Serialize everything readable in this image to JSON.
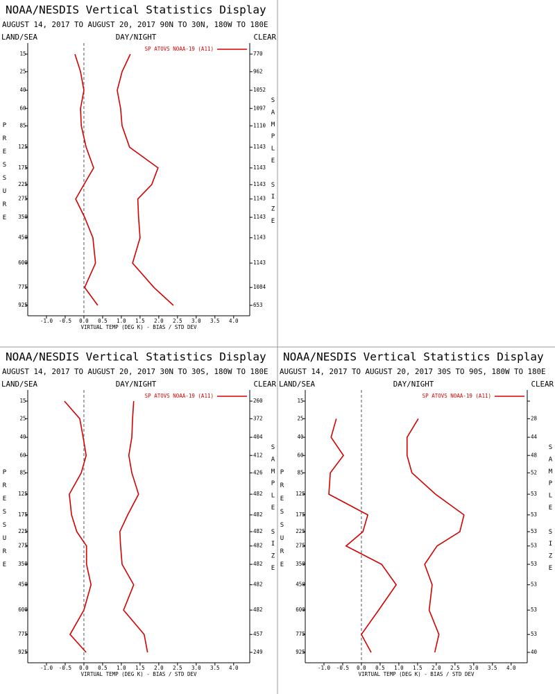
{
  "chart_data": [
    {
      "type": "line",
      "title": "NOAA/NESDIS Vertical Statistics Display",
      "subtitle": "AUGUST 14, 2017 TO AUGUST 20, 2017 90N TO 30N, 180W TO 180E",
      "left_label": "LAND/SEA",
      "center_label": "DAY/NIGHT",
      "right_label": "CLEAR",
      "y_label": "PRESSURE",
      "y2_label": "SAMPLE SIZE",
      "x_label": "VIRTUAL TEMP (DEG K) - BIAS / STD DEV",
      "levels": [
        15,
        25,
        40,
        60,
        85,
        125,
        175,
        225,
        275,
        350,
        450,
        600,
        775,
        925
      ],
      "ylim": [
        15,
        925
      ],
      "y_power": 0.286,
      "xlim": [
        -1.5,
        4.43
      ],
      "xticks": [
        {
          "value": -1,
          "label": "-1.0"
        },
        {
          "value": -0.5,
          "label": "-0.5"
        },
        {
          "value": 0,
          "label": "0.0"
        },
        {
          "value": 0.5,
          "label": "0.5"
        },
        {
          "value": 1,
          "label": "1.0"
        },
        {
          "value": 1.5,
          "label": "1.5"
        },
        {
          "value": 2,
          "label": "2.0"
        },
        {
          "value": 2.5,
          "label": "2.5"
        },
        {
          "value": 3,
          "label": "3.0"
        },
        {
          "value": 3.5,
          "label": "3.5"
        },
        {
          "value": 4,
          "label": "4.0"
        }
      ],
      "sample_size": [
        770,
        962,
        1052,
        1097,
        1110,
        1143,
        1143,
        1143,
        1143,
        1143,
        1143,
        1143,
        1084,
        653
      ],
      "series": [
        {
          "name": "SP ATOVS NOAA-19 (A11)",
          "color": "#d40000",
          "bias": [
            -0.24,
            -0.09,
            0.0,
            -0.09,
            -0.07,
            0.06,
            0.26,
            0.0,
            -0.22,
            0.02,
            0.24,
            0.31,
            0.02,
            0.37
          ],
          "std_dev": [
            1.24,
            1.02,
            0.89,
            0.98,
            1.02,
            1.22,
            1.98,
            1.81,
            1.44,
            1.46,
            1.5,
            1.3,
            1.87,
            2.39
          ]
        }
      ]
    },
    {
      "type": "line",
      "title": "NOAA/NESDIS Vertical Statistics Display",
      "subtitle": "AUGUST 14, 2017 TO AUGUST 20, 2017 30N TO 30S, 180W TO 180E",
      "left_label": "LAND/SEA",
      "center_label": "DAY/NIGHT",
      "right_label": "CLEAR",
      "y_label": "PRESSURE",
      "y2_label": "SAMPLE SIZE",
      "x_label": "VIRTUAL TEMP (DEG K) - BIAS / STD DEV",
      "levels": [
        15,
        25,
        40,
        60,
        85,
        125,
        175,
        225,
        275,
        350,
        450,
        600,
        775,
        925
      ],
      "ylim": [
        15,
        925
      ],
      "y_power": 0.286,
      "xlim": [
        -1.5,
        4.43
      ],
      "xticks": [
        {
          "value": -1,
          "label": "-1.0"
        },
        {
          "value": -0.5,
          "label": "-0.5"
        },
        {
          "value": 0,
          "label": "0.0"
        },
        {
          "value": 0.5,
          "label": "0.5"
        },
        {
          "value": 1,
          "label": "1.0"
        },
        {
          "value": 1.5,
          "label": "1.5"
        },
        {
          "value": 2,
          "label": "2.0"
        },
        {
          "value": 2.5,
          "label": "2.5"
        },
        {
          "value": 3,
          "label": "3.0"
        },
        {
          "value": 3.5,
          "label": "3.5"
        },
        {
          "value": 4,
          "label": "4.0"
        }
      ],
      "sample_size": [
        260,
        372,
        404,
        412,
        426,
        482,
        482,
        482,
        482,
        482,
        482,
        482,
        457,
        249
      ],
      "series": [
        {
          "name": "SP ATOVS NOAA-19 (A11)",
          "color": "#d40000",
          "bias": [
            -0.52,
            -0.11,
            -0.02,
            0.06,
            -0.07,
            -0.39,
            -0.33,
            -0.19,
            0.07,
            0.07,
            0.19,
            0.0,
            -0.37,
            0.06
          ],
          "std_dev": [
            1.33,
            1.3,
            1.28,
            1.2,
            1.28,
            1.46,
            1.17,
            0.96,
            0.98,
            1.02,
            1.33,
            1.06,
            1.61,
            1.7
          ]
        }
      ]
    },
    {
      "type": "line",
      "title": "NOAA/NESDIS Vertical Statistics Display",
      "subtitle": "AUGUST 14, 2017 TO AUGUST 20, 2017 30S TO 90S, 180W TO 180E",
      "left_label": "LAND/SEA",
      "center_label": "DAY/NIGHT",
      "right_label": "CLEAR",
      "y_label": "PRESSURE",
      "y2_label": "SAMPLE SIZE",
      "x_label": "VIRTUAL TEMP (DEG K) - BIAS / STD DEV",
      "levels": [
        15,
        25,
        40,
        60,
        85,
        125,
        175,
        225,
        275,
        350,
        450,
        600,
        775,
        925
      ],
      "ylim": [
        15,
        925
      ],
      "y_power": 0.286,
      "xlim": [
        -1.5,
        4.43
      ],
      "xticks": [
        {
          "value": -1,
          "label": "-1.0"
        },
        {
          "value": -0.5,
          "label": "-0.5"
        },
        {
          "value": 0,
          "label": "0.0"
        },
        {
          "value": 0.5,
          "label": "0.5"
        },
        {
          "value": 1,
          "label": "1.0"
        },
        {
          "value": 1.5,
          "label": "1.5"
        },
        {
          "value": 2,
          "label": "2.0"
        },
        {
          "value": 2.5,
          "label": "2.5"
        },
        {
          "value": 3,
          "label": "3.0"
        },
        {
          "value": 3.5,
          "label": "3.5"
        },
        {
          "value": 4,
          "label": "4.0"
        }
      ],
      "sample_size": [
        null,
        28,
        44,
        48,
        52,
        53,
        53,
        53,
        53,
        53,
        53,
        53,
        53,
        40
      ],
      "series": [
        {
          "name": "SP ATOVS NOAA-19 (A11)",
          "color": "#d40000",
          "bias": [
            null,
            -0.67,
            -0.81,
            -0.48,
            -0.83,
            -0.87,
            0.17,
            0.04,
            -0.41,
            0.54,
            0.93,
            0.46,
            0.0,
            0.26
          ],
          "std_dev": [
            null,
            1.52,
            1.22,
            1.22,
            1.35,
            1.98,
            2.74,
            2.63,
            2.02,
            1.69,
            1.89,
            1.81,
            2.07,
            1.96
          ]
        }
      ]
    }
  ]
}
